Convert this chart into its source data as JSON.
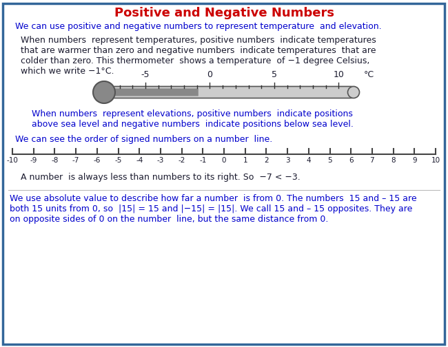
{
  "title": "Positive and Negative Numbers",
  "title_color": "#CC0000",
  "border_color": "#336699",
  "text_color": "#1a1a2e",
  "blue_color": "#0000CC",
  "line1": "We can use positive and negative numbers to represent temperature  and elevation.",
  "para2_line1": "When numbers  represent temperatures, positive numbers  indicate temperatures",
  "para2_line2": "that are warmer than zero and negative numbers  indicate temperatures  that are",
  "para2_line3": "colder than zero. This thermometer  shows a temperature  of −1 degree Celsius,",
  "para2_line4": "which we write −1°C.",
  "para3_line1": "    When numbers  represent elevations, positive numbers  indicate positions",
  "para3_line2": "    above sea level and negative numbers  indicate positions below sea level.",
  "line_sentence": "We can see the order of signed numbers on a number  line.",
  "number_line_note": "  A number  is always less than numbers to its right. So  −7 < −3.",
  "para5_line1": "We use absolute value to describe how far a number  is from 0. The numbers  15 and – 15 are",
  "para5_line2": "both 15 units from 0, so  |15| = 15 and |−15| = |15|. We call 15 and – 15 opposites. They are",
  "para5_line3": "on opposite sides of 0 on the number  line, but the same distance from 0.",
  "bg_color": "#FFFFFF",
  "thermometer_filled_color": "#888888",
  "thermometer_empty_color": "#CCCCCC",
  "thermometer_border_color": "#555555"
}
